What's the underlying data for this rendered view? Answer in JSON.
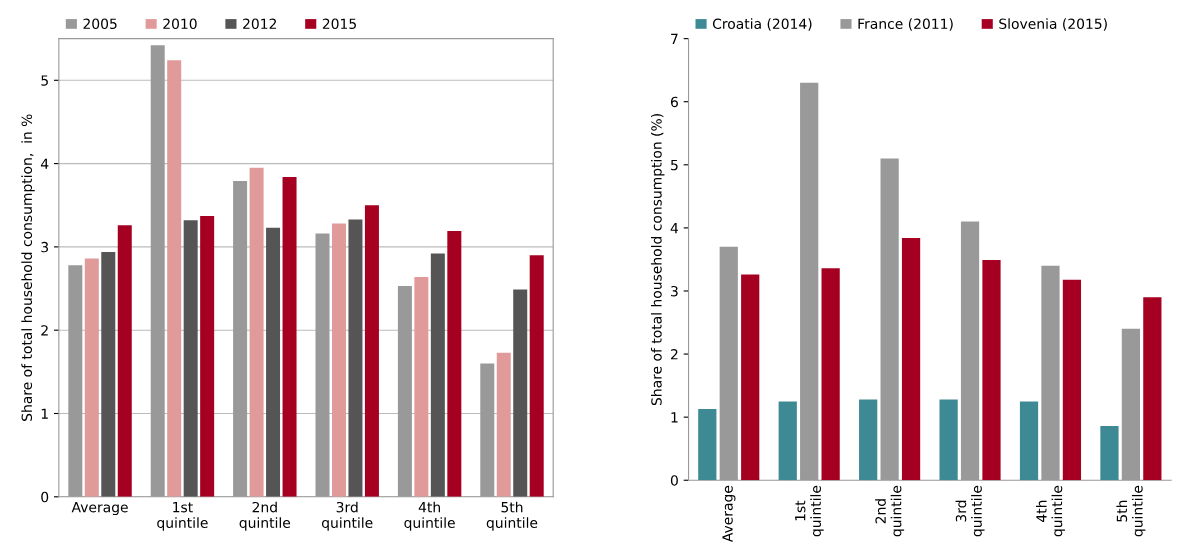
{
  "chart_data": [
    {
      "type": "bar",
      "ylabel": "Share of total household consumption,  in %",
      "categories": [
        "Average",
        "1st\nquintile",
        "2nd\nquintile",
        "3rd\nquintile",
        "4th\nquintile",
        "5th\nquintile"
      ],
      "series": [
        {
          "name": "2005",
          "color": "#999999",
          "values": [
            2.78,
            5.42,
            3.79,
            3.16,
            2.53,
            1.6
          ]
        },
        {
          "name": "2010",
          "color": "#e09a9a",
          "values": [
            2.86,
            5.24,
            3.95,
            3.28,
            2.64,
            1.73
          ]
        },
        {
          "name": "2012",
          "color": "#555555",
          "values": [
            2.94,
            3.32,
            3.23,
            3.33,
            2.92,
            2.49
          ]
        },
        {
          "name": "2015",
          "color": "#a50021",
          "values": [
            3.26,
            3.37,
            3.84,
            3.5,
            3.19,
            2.9
          ]
        }
      ],
      "ylim": [
        0,
        5.5
      ],
      "yticks": [
        0,
        1,
        2,
        3,
        4,
        5
      ],
      "grid": "y",
      "legend": "top left"
    },
    {
      "type": "bar",
      "ylabel": "Share of total household consumption (%)",
      "categories": [
        "Average",
        "1st\nquintile",
        "2nd\nquintile",
        "3rd\nquintile",
        "4th\nquintile",
        "5th\nquintile"
      ],
      "series": [
        {
          "name": "Croatia (2014)",
          "color": "#3d8a94",
          "values": [
            1.13,
            1.25,
            1.28,
            1.28,
            1.25,
            0.86
          ]
        },
        {
          "name": "France (2011)",
          "color": "#999999",
          "values": [
            3.7,
            6.3,
            5.1,
            4.1,
            3.4,
            2.4
          ]
        },
        {
          "name": "Slovenia (2015)",
          "color": "#a50021",
          "values": [
            3.26,
            3.36,
            3.84,
            3.49,
            3.18,
            2.9
          ]
        }
      ],
      "ylim": [
        0,
        7
      ],
      "yticks": [
        0,
        1,
        2,
        3,
        4,
        5,
        6,
        7
      ],
      "grid": false,
      "legend": "top left"
    }
  ]
}
